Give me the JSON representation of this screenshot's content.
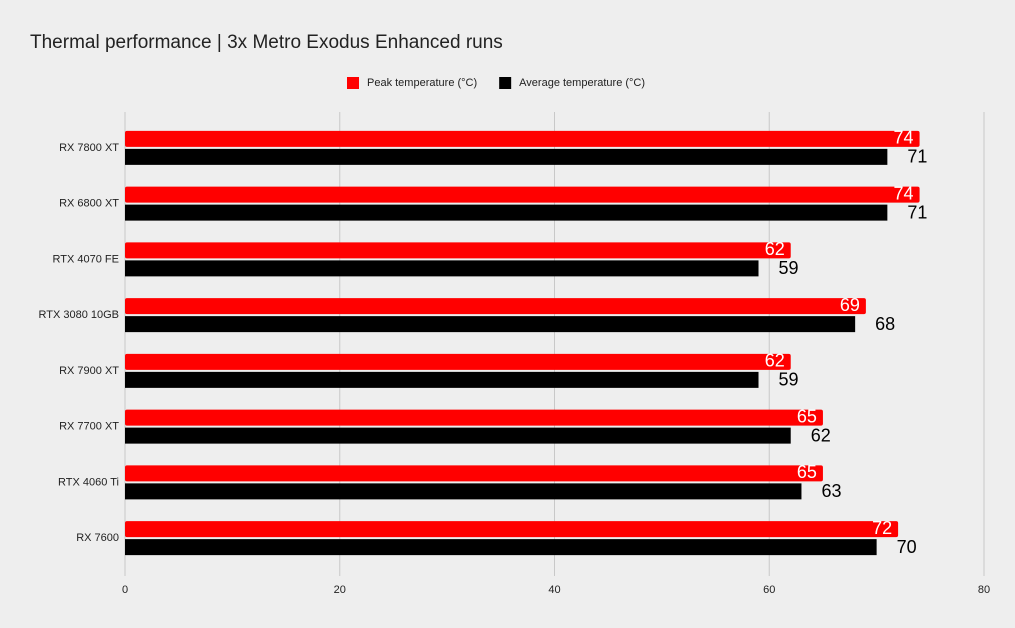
{
  "chart_data": {
    "type": "hbar",
    "title": "Thermal performance | 3x Metro Exodus Enhanced runs",
    "categories": [
      "RX 7800 XT",
      "RX 6800 XT",
      "RTX 4070 FE",
      "RTX 3080 10GB",
      "RX 7900 XT",
      "RX 7700 XT",
      "RTX 4060 Ti",
      "RX 7600"
    ],
    "series": [
      {
        "name": "Peak temperature (°C)",
        "color": "#ff0000",
        "values": [
          74,
          74,
          62,
          69,
          62,
          65,
          65,
          72
        ]
      },
      {
        "name": "Average temperature (°C)",
        "color": "#000000",
        "values": [
          71,
          71,
          59,
          68,
          59,
          62,
          63,
          70
        ]
      }
    ],
    "xlim": [
      0,
      80
    ],
    "xticks": [
      0,
      20,
      40,
      60,
      80
    ],
    "grid": true,
    "legend": "top"
  }
}
